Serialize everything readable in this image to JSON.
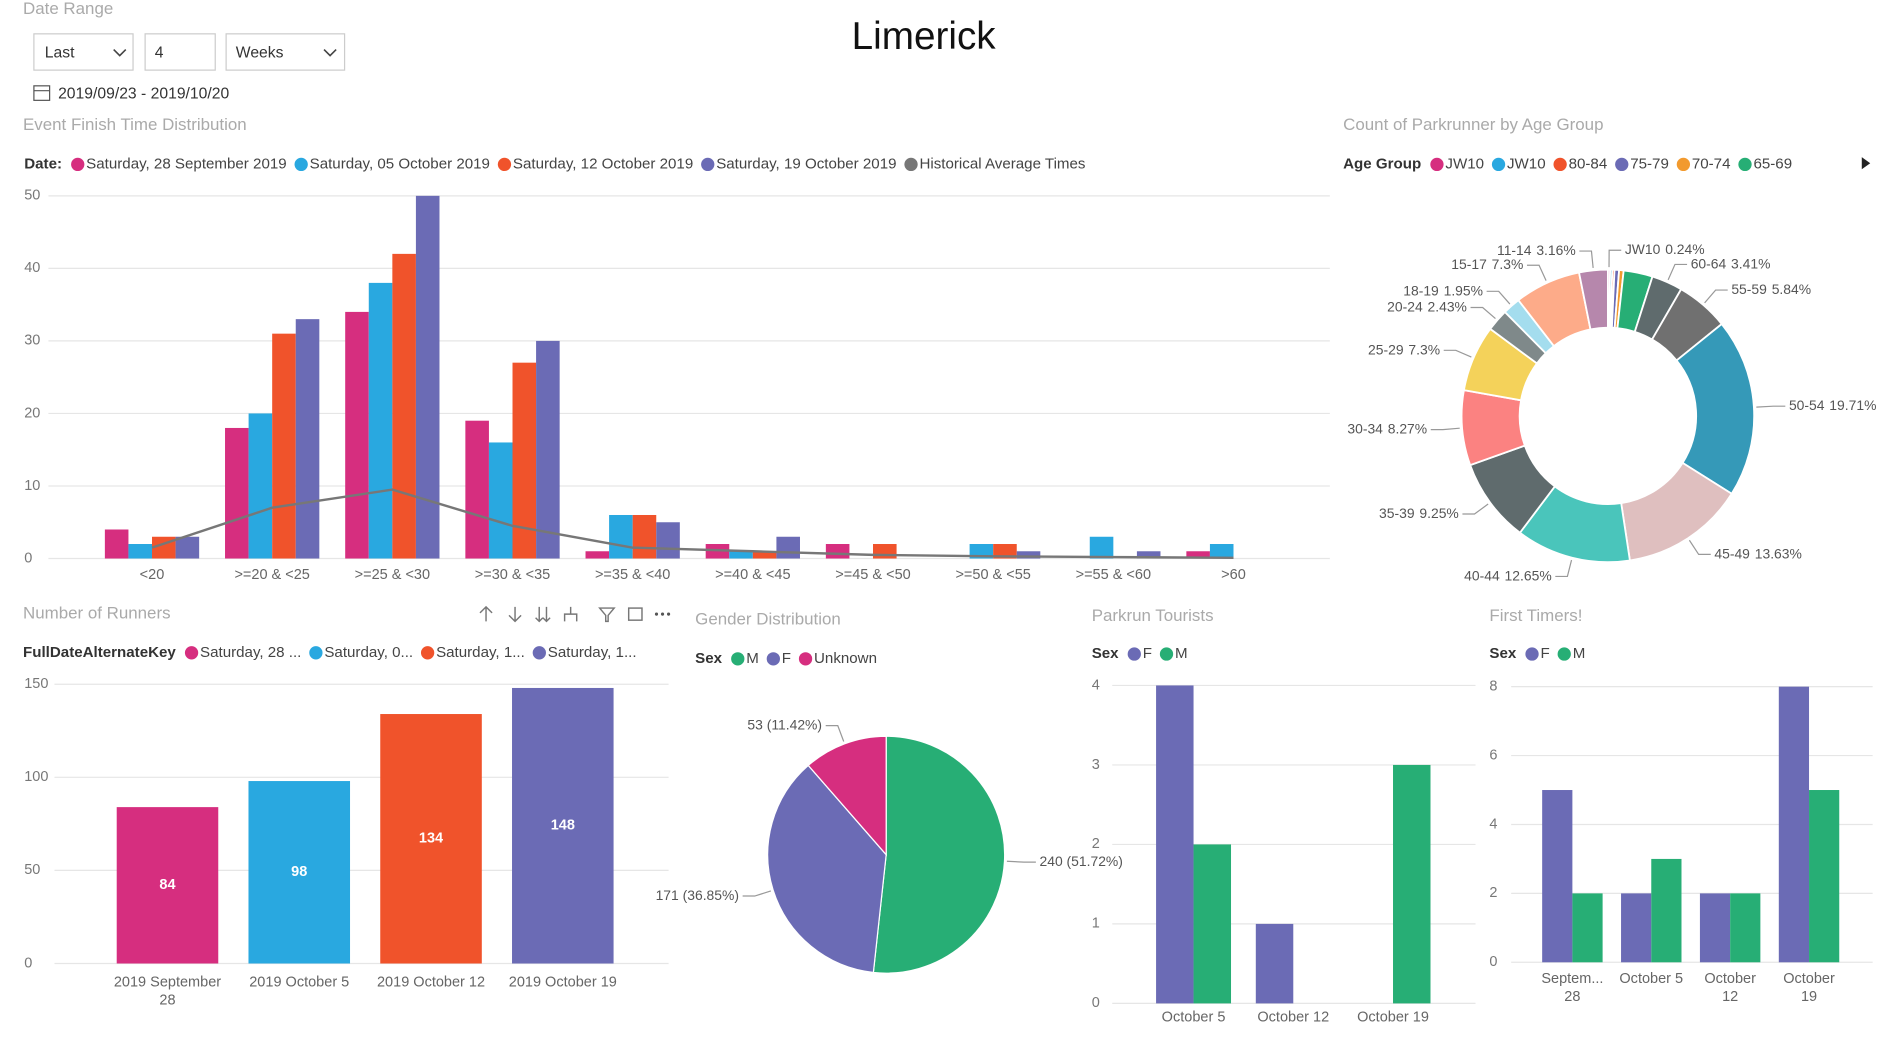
{
  "header": {
    "title": "Limerick",
    "slicer_label": "Date Range",
    "period": "Last",
    "count": 4,
    "unit": "Weeks",
    "range": "2019/09/23 - 2019/10/20"
  },
  "chart_data": [
    {
      "type": "bar",
      "title": "Event Finish Time Distribution",
      "legend_title": "Date:",
      "categories": [
        "<20",
        ">=20 & <25",
        ">=25 & <30",
        ">=30 & <35",
        ">=35 & <40",
        ">=40 & <45",
        ">=45 & <50",
        ">=50 & <55",
        ">=55 & <60",
        ">60"
      ],
      "series": [
        {
          "name": "Saturday, 28 September 2019",
          "color": "#D62E7F",
          "values": [
            4,
            18,
            34,
            19,
            1,
            2,
            2,
            null,
            null,
            1
          ]
        },
        {
          "name": "Saturday, 05 October 2019",
          "color": "#29A8E0",
          "values": [
            2,
            20,
            38,
            16,
            6,
            1,
            null,
            2,
            3,
            2
          ]
        },
        {
          "name": "Saturday, 12 October 2019",
          "color": "#F0532B",
          "values": [
            3,
            31,
            42,
            27,
            6,
            1,
            2,
            2,
            null,
            null
          ]
        },
        {
          "name": "Saturday, 19 October 2019",
          "color": "#6B6BB5",
          "values": [
            3,
            33,
            50,
            30,
            5,
            3,
            null,
            1,
            1,
            null
          ]
        },
        {
          "name": "Historical Average Times",
          "color": "#777777",
          "type": "line",
          "values": [
            1.5,
            7,
            9.5,
            4.5,
            1.5,
            1,
            0.5,
            0.3,
            0.2,
            0.1
          ]
        }
      ],
      "ylim": [
        0,
        50
      ],
      "yticks": [
        0,
        10,
        20,
        30,
        40,
        50
      ],
      "grid": true
    },
    {
      "type": "donut",
      "title": "Count of Parkrunner by Age Group",
      "legend_title": "Age Group",
      "categories": [
        "JW10",
        "JW10",
        "80-84",
        "75-79",
        "70-74",
        "65-69",
        "60-64",
        "55-59",
        "50-54",
        "45-49",
        "40-44",
        "35-39",
        "30-34",
        "25-29",
        "20-24",
        "18-19",
        "15-17",
        "11-14"
      ],
      "values": [
        0.24,
        0.24,
        0.24,
        0.5,
        0.5,
        3.2,
        3.41,
        5.84,
        19.71,
        13.63,
        12.65,
        9.25,
        8.27,
        7.3,
        2.43,
        1.95,
        7.3,
        3.16
      ],
      "value_labels": [
        "0.24%",
        null,
        null,
        null,
        null,
        null,
        "3.41%",
        "5.84%",
        "19.71%",
        "13.63%",
        "12.65%",
        "9.25%",
        "8.27%",
        "7.3%",
        "2.43%",
        "1.95%",
        "7.3%",
        "3.16%"
      ],
      "colors": [
        "#D62E7F",
        "#29A8E0",
        "#F0532B",
        "#6B6BB5",
        "#F29A2E",
        "#27AE75",
        "#5F6B6D",
        "#707070",
        "#3599B8",
        "#DFBFBF",
        "#4AC5BB",
        "#5F6B6D",
        "#FB8281",
        "#F4D25A",
        "#7F898A",
        "#A4DDEE",
        "#FDAB89",
        "#B687AC"
      ]
    },
    {
      "type": "bar",
      "title": "Number of Runners",
      "legend_title": "FullDateAlternateKey",
      "legend_entries": [
        "Saturday, 28 ...",
        "Saturday, 0...",
        "Saturday, 1...",
        "Saturday, 1..."
      ],
      "categories": [
        "2019 September 28",
        "2019 October 5",
        "2019 October 12",
        "2019 October 19"
      ],
      "values": [
        84,
        98,
        134,
        148
      ],
      "colors": [
        "#D62E7F",
        "#29A8E0",
        "#F0532B",
        "#6B6BB5"
      ],
      "data_labels": true,
      "ylim": [
        0,
        150
      ],
      "yticks": [
        0,
        50,
        100,
        150
      ],
      "grid": true
    },
    {
      "type": "pie",
      "title": "Gender Distribution",
      "legend_title": "Sex",
      "categories": [
        "M",
        "F",
        "Unknown"
      ],
      "values": [
        240,
        171,
        53
      ],
      "value_labels": [
        "240 (51.72%)",
        "171 (36.85%)",
        "53 (11.42%)"
      ],
      "colors": [
        "#27AE75",
        "#6B6BB5",
        "#D62E7F"
      ]
    },
    {
      "type": "bar",
      "title": "Parkrun Tourists",
      "legend_title": "Sex",
      "categories": [
        "October 5",
        "October 12",
        "October 19"
      ],
      "series": [
        {
          "name": "F",
          "color": "#6B6BB5",
          "values": [
            4,
            1,
            null
          ]
        },
        {
          "name": "M",
          "color": "#27AE75",
          "values": [
            2,
            null,
            3
          ]
        }
      ],
      "ylim": [
        0,
        4
      ],
      "yticks": [
        0,
        1,
        2,
        3,
        4
      ],
      "grid": true
    },
    {
      "type": "bar",
      "title": "First Timers!",
      "legend_title": "Sex",
      "categories": [
        "Septem... 28",
        "October 5",
        "October 12",
        "October 19"
      ],
      "series": [
        {
          "name": "F",
          "color": "#6B6BB5",
          "values": [
            5,
            2,
            2,
            8
          ]
        },
        {
          "name": "M",
          "color": "#27AE75",
          "values": [
            2,
            3,
            2,
            5
          ]
        }
      ],
      "ylim": [
        0,
        8
      ],
      "yticks": [
        0,
        2,
        4,
        6,
        8
      ],
      "grid": true
    }
  ]
}
